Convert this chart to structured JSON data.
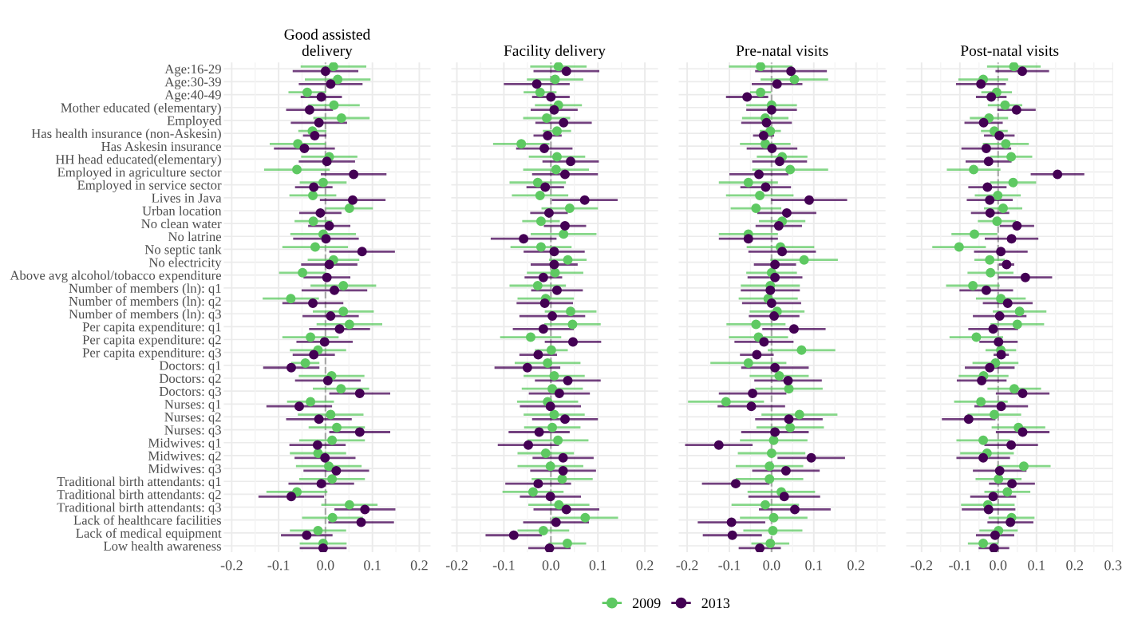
{
  "chart_data": [
    {
      "type": "scatter",
      "orientation": "horizontal",
      "title": "Good assisted\ndelivery",
      "categories": [
        "Age:16-29",
        "Age:30-39",
        "Age:40-49",
        "Mother educated (elementary)",
        "Employed",
        "Has health insurance (non-Askesin)",
        "Has Askesin insurance",
        "HH head educated(elementary)",
        "Employed in agriculture sector",
        "Employed in service sector",
        "Lives in Java",
        "Urban location",
        "No clean water",
        "No latrine",
        "No septic tank",
        "No electricity",
        "Above avg alcohol/tobacco expenditure",
        "Number of members (ln): q1",
        "Number of members (ln): q2",
        "Number of members (ln): q3",
        "Per capita expenditure: q1",
        "Per capita expenditure: q2",
        "Per capita expenditure: q3",
        "Doctors: q1",
        "Doctors: q2",
        "Doctors: q3",
        "Nurses: q1",
        "Nurses: q2",
        "Nurses: q3",
        "Midwives: q1",
        "Midwives: q2",
        "Midwives: q3",
        "Traditional birth attendants: q1",
        "Traditional birth attendants: q2",
        "Traditional birth attendants: q3",
        "Lack of healthcare facilities",
        "Lack of medical equipment",
        "Low health awareness"
      ],
      "series": [
        {
          "name": "2009",
          "color": "#5ec962",
          "values": [
            0.017,
            0.026,
            -0.039,
            0.018,
            0.034,
            -0.028,
            -0.059,
            0.008,
            -0.061,
            -0.005,
            -0.027,
            0.051,
            -0.026,
            -0.005,
            -0.022,
            0.017,
            -0.049,
            0.038,
            -0.074,
            0.038,
            0.051,
            -0.032,
            -0.016,
            -0.043,
            0.013,
            0.033,
            -0.032,
            0.011,
            0.024,
            0.014,
            -0.016,
            0.007,
            0.014,
            -0.061,
            0.051,
            0.015,
            -0.016,
            -0.005
          ],
          "errors": [
            0.07,
            0.07,
            0.04,
            0.055,
            0.06,
            0.03,
            0.06,
            0.06,
            0.07,
            0.05,
            0.05,
            0.05,
            0.04,
            0.07,
            0.07,
            0.055,
            0.05,
            0.07,
            0.06,
            0.065,
            0.07,
            0.06,
            0.06,
            0.03,
            0.07,
            0.06,
            0.05,
            0.07,
            0.06,
            0.07,
            0.06,
            0.07,
            0.07,
            0.065,
            0.06,
            0.065,
            0.06,
            0.05
          ]
        },
        {
          "name": "2013",
          "color": "#440154",
          "values": [
            0.0,
            0.011,
            -0.009,
            -0.034,
            -0.014,
            -0.023,
            -0.045,
            0.003,
            0.06,
            -0.025,
            0.058,
            -0.011,
            0.008,
            0.001,
            0.078,
            0.008,
            0.003,
            0.019,
            -0.027,
            0.011,
            0.03,
            -0.002,
            -0.025,
            -0.073,
            0.005,
            0.073,
            -0.056,
            -0.014,
            0.073,
            -0.017,
            -0.001,
            0.023,
            -0.009,
            -0.073,
            0.084,
            0.076,
            -0.04,
            -0.005
          ],
          "errors": [
            0.07,
            0.068,
            0.044,
            0.05,
            0.06,
            0.025,
            0.065,
            0.06,
            0.07,
            0.04,
            0.07,
            0.045,
            0.045,
            0.07,
            0.07,
            0.06,
            0.05,
            0.07,
            0.065,
            0.06,
            0.065,
            0.06,
            0.045,
            0.06,
            0.07,
            0.065,
            0.07,
            0.07,
            0.065,
            0.06,
            0.065,
            0.07,
            0.07,
            0.07,
            0.065,
            0.07,
            0.055,
            0.05
          ]
        }
      ],
      "xlim": [
        -0.217,
        0.224
      ],
      "xticks": [
        -0.2,
        {
          "value": -0.15,
          "label": null
        },
        -0.1,
        {
          "value": -0.05,
          "label": null
        },
        {
          "value": 0,
          "label": "0.0"
        },
        {
          "value": 0.05,
          "label": null
        },
        0.1,
        {
          "value": 0.15,
          "label": null
        },
        0.2
      ],
      "ref_lines": [
        {
          "axis": "x",
          "value": 0,
          "line_style": "dashed",
          "color": "#aaaaaa"
        }
      ],
      "grid": true,
      "marker": "circle",
      "legend": "bottom"
    },
    {
      "type": "scatter",
      "orientation": "horizontal",
      "title": "Facility delivery",
      "categories": [
        null,
        null,
        null,
        null,
        null,
        null,
        null,
        null,
        null,
        null,
        null,
        null,
        null,
        null,
        null,
        null,
        null,
        null,
        null,
        null,
        null,
        null,
        null,
        null,
        null,
        null,
        null,
        null,
        null,
        null,
        null,
        null,
        null,
        null,
        null,
        null,
        null,
        null
      ],
      "series": [
        {
          "name": "2009",
          "color": "#5ec962",
          "values": [
            0.016,
            0.009,
            -0.023,
            0.016,
            -0.009,
            0.013,
            -0.063,
            0.013,
            0.011,
            -0.028,
            -0.023,
            0.04,
            -0.021,
            0.027,
            -0.021,
            0.036,
            0.009,
            -0.028,
            -0.011,
            0.042,
            0.046,
            -0.043,
            0.001,
            -0.007,
            0.007,
            0.003,
            -0.007,
            0.007,
            0.003,
            0.015,
            -0.011,
            -0.001,
            0.024,
            -0.038,
            0.017,
            0.073,
            -0.016,
            0.035
          ],
          "errors": [
            0.06,
            0.06,
            0.035,
            0.05,
            0.05,
            0.03,
            0.06,
            0.06,
            0.07,
            0.06,
            0.06,
            0.06,
            0.04,
            0.07,
            0.065,
            0.04,
            0.06,
            0.06,
            0.06,
            0.055,
            0.06,
            0.065,
            0.035,
            0.07,
            0.065,
            0.065,
            0.065,
            0.065,
            0.06,
            0.065,
            0.06,
            0.07,
            0.065,
            0.065,
            0.065,
            0.07,
            0.055,
            0.04
          ]
        },
        {
          "name": "2013",
          "color": "#440154",
          "values": [
            0.033,
            -0.03,
            0.0,
            0.007,
            0.027,
            -0.007,
            -0.014,
            0.042,
            0.03,
            -0.012,
            0.072,
            -0.004,
            0.03,
            -0.058,
            0.007,
            0.007,
            -0.016,
            0.013,
            -0.013,
            0.003,
            -0.016,
            0.047,
            -0.027,
            -0.05,
            0.036,
            0.018,
            -0.001,
            0.03,
            -0.025,
            -0.048,
            0.026,
            0.026,
            -0.027,
            -0.001,
            0.033,
            0.011,
            -0.079,
            -0.003
          ],
          "errors": [
            0.07,
            0.07,
            0.04,
            0.05,
            0.06,
            0.03,
            0.06,
            0.06,
            0.07,
            0.04,
            0.07,
            0.04,
            0.045,
            0.07,
            0.065,
            0.05,
            0.04,
            0.055,
            0.06,
            0.07,
            0.065,
            0.06,
            0.04,
            0.07,
            0.07,
            0.065,
            0.065,
            0.07,
            0.065,
            0.065,
            0.065,
            0.07,
            0.07,
            0.065,
            0.07,
            0.07,
            0.06,
            0.045
          ]
        }
      ],
      "xlim": [
        -0.212,
        0.228
      ],
      "xticks": [
        -0.2,
        {
          "value": -0.15,
          "label": null
        },
        -0.1,
        {
          "value": -0.05,
          "label": null
        },
        {
          "value": 0,
          "label": "0.0"
        },
        {
          "value": 0.05,
          "label": null
        },
        0.1,
        {
          "value": 0.15,
          "label": null
        },
        0.2
      ],
      "ref_lines": [
        {
          "axis": "x",
          "value": 0,
          "line_style": "dashed",
          "color": "#aaaaaa"
        }
      ],
      "grid": true,
      "marker": "circle",
      "tick_labels": "x"
    },
    {
      "type": "scatter",
      "orientation": "horizontal",
      "title": "Pre-natal visits",
      "categories": [
        null,
        null,
        null,
        null,
        null,
        null,
        null,
        null,
        null,
        null,
        null,
        null,
        null,
        null,
        null,
        null,
        null,
        null,
        null,
        null,
        null,
        null,
        null,
        null,
        null,
        null,
        null,
        null,
        null,
        null,
        null,
        null,
        null,
        null,
        null,
        null,
        null,
        null
      ],
      "series": [
        {
          "name": "2009",
          "color": "#5ec962",
          "values": [
            -0.026,
            0.054,
            -0.026,
            0.0,
            -0.015,
            -0.003,
            -0.015,
            0.025,
            0.044,
            -0.055,
            -0.028,
            -0.037,
            0.025,
            -0.055,
            0.021,
            0.077,
            0.0,
            -0.003,
            -0.008,
            0.013,
            -0.037,
            -0.031,
            0.071,
            -0.055,
            0.018,
            0.041,
            -0.108,
            0.066,
            0.044,
            0.005,
            0.0,
            -0.005,
            -0.005,
            0.023,
            -0.015,
            0.005,
            0.003,
            -0.003
          ],
          "errors": [
            0.075,
            0.08,
            0.025,
            0.06,
            0.055,
            0.025,
            0.06,
            0.06,
            0.09,
            0.07,
            0.08,
            0.06,
            0.055,
            0.07,
            0.08,
            0.08,
            0.06,
            0.07,
            0.07,
            0.065,
            0.07,
            0.07,
            0.08,
            0.09,
            0.07,
            0.08,
            0.09,
            0.09,
            0.08,
            0.08,
            0.08,
            0.08,
            0.08,
            0.08,
            0.08,
            0.08,
            0.07,
            0.045
          ]
        },
        {
          "name": "2013",
          "color": "#440154",
          "values": [
            0.046,
            0.013,
            -0.058,
            0.0,
            -0.012,
            -0.019,
            0.001,
            0.019,
            -0.03,
            -0.014,
            0.089,
            0.036,
            0.017,
            -0.055,
            0.025,
            0.008,
            0.008,
            -0.003,
            0.0,
            0.006,
            0.053,
            -0.018,
            -0.035,
            0.008,
            0.039,
            -0.045,
            -0.048,
            0.041,
            0.008,
            -0.125,
            0.094,
            0.034,
            -0.085,
            0.03,
            0.055,
            -0.095,
            -0.093,
            -0.028
          ],
          "errors": [
            0.085,
            0.06,
            0.05,
            0.06,
            0.06,
            0.025,
            0.06,
            0.065,
            0.07,
            0.06,
            0.09,
            0.07,
            0.055,
            0.07,
            0.08,
            0.05,
            0.065,
            0.07,
            0.07,
            0.06,
            0.075,
            0.07,
            0.04,
            0.08,
            0.08,
            0.08,
            0.08,
            0.08,
            0.08,
            0.08,
            0.08,
            0.08,
            0.08,
            0.085,
            0.085,
            0.08,
            0.07,
            0.05
          ]
        }
      ],
      "xlim": [
        -0.22,
        0.27
      ],
      "xticks": [
        -0.2,
        {
          "value": -0.15,
          "label": null
        },
        -0.1,
        {
          "value": -0.05,
          "label": null
        },
        {
          "value": 0,
          "label": "0.0"
        },
        {
          "value": 0.05,
          "label": null
        },
        0.1,
        {
          "value": 0.15,
          "label": null
        },
        0.2,
        {
          "value": 0.25,
          "label": null
        }
      ],
      "ref_lines": [
        {
          "axis": "x",
          "value": 0,
          "line_style": "dashed",
          "color": "#aaaaaa"
        }
      ],
      "grid": true,
      "marker": "circle",
      "tick_labels": "x"
    },
    {
      "type": "scatter",
      "orientation": "horizontal",
      "title": "Post-natal visits",
      "categories": [
        null,
        null,
        null,
        null,
        null,
        null,
        null,
        null,
        null,
        null,
        null,
        null,
        null,
        null,
        null,
        null,
        null,
        null,
        null,
        null,
        null,
        null,
        null,
        null,
        null,
        null,
        null,
        null,
        null,
        null,
        null,
        null,
        null,
        null,
        null,
        null,
        null,
        null
      ],
      "series": [
        {
          "name": "2009",
          "color": "#5ec962",
          "values": [
            0.041,
            -0.039,
            -0.004,
            0.018,
            -0.024,
            -0.01,
            0.02,
            0.034,
            -0.064,
            0.039,
            -0.001,
            0.013,
            -0.003,
            -0.062,
            -0.102,
            -0.022,
            -0.02,
            -0.066,
            0.007,
            0.056,
            0.05,
            -0.057,
            0.007,
            -0.007,
            -0.038,
            0.042,
            -0.045,
            -0.01,
            0.053,
            -0.039,
            -0.029,
            0.067,
            0.001,
            0.024,
            -0.027,
            0.035,
            0.001,
            -0.039
          ],
          "errors": [
            0.07,
            0.065,
            0.04,
            0.045,
            0.05,
            0.035,
            0.06,
            0.055,
            0.07,
            0.06,
            0.06,
            0.05,
            0.05,
            0.06,
            0.07,
            0.04,
            0.06,
            0.07,
            0.065,
            0.07,
            0.07,
            0.07,
            0.04,
            0.06,
            0.065,
            0.07,
            0.07,
            0.07,
            0.07,
            0.07,
            0.07,
            0.07,
            0.06,
            0.06,
            0.07,
            0.06,
            0.05,
            0.04
          ]
        },
        {
          "name": "2013",
          "color": "#440154",
          "values": [
            0.063,
            -0.045,
            -0.018,
            0.048,
            -0.038,
            0.003,
            -0.031,
            -0.025,
            0.155,
            -0.028,
            -0.022,
            -0.021,
            0.049,
            0.035,
            0.007,
            0.022,
            0.071,
            -0.031,
            0.025,
            0.004,
            -0.013,
            0.001,
            0.008,
            -0.022,
            -0.043,
            0.064,
            0.008,
            -0.077,
            0.064,
            0.034,
            -0.039,
            0.004,
            0.036,
            -0.013,
            -0.025,
            0.032,
            -0.008,
            -0.011
          ],
          "errors": [
            0.07,
            0.065,
            0.04,
            0.05,
            0.05,
            0.04,
            0.065,
            0.06,
            0.07,
            0.05,
            0.06,
            0.05,
            0.045,
            0.07,
            0.07,
            0.02,
            0.07,
            0.07,
            0.065,
            0.07,
            0.065,
            0.05,
            0.02,
            0.065,
            0.065,
            0.07,
            0.07,
            0.07,
            0.07,
            0.07,
            0.07,
            0.07,
            0.06,
            0.06,
            0.07,
            0.06,
            0.05,
            0.04
          ]
        }
      ],
      "xlim": [
        -0.24,
        0.3
      ],
      "xticks": [
        -0.2,
        {
          "value": -0.15,
          "label": null
        },
        -0.1,
        {
          "value": -0.05,
          "label": null
        },
        {
          "value": 0,
          "label": "0.0"
        },
        {
          "value": 0.05,
          "label": null
        },
        0.1,
        {
          "value": 0.15,
          "label": null
        },
        0.2,
        {
          "value": 0.25,
          "label": null
        },
        0.3
      ],
      "ref_lines": [
        {
          "axis": "x",
          "value": 0,
          "line_style": "dashed",
          "color": "#aaaaaa"
        }
      ],
      "grid": true,
      "marker": "circle",
      "tick_labels": "x"
    }
  ]
}
